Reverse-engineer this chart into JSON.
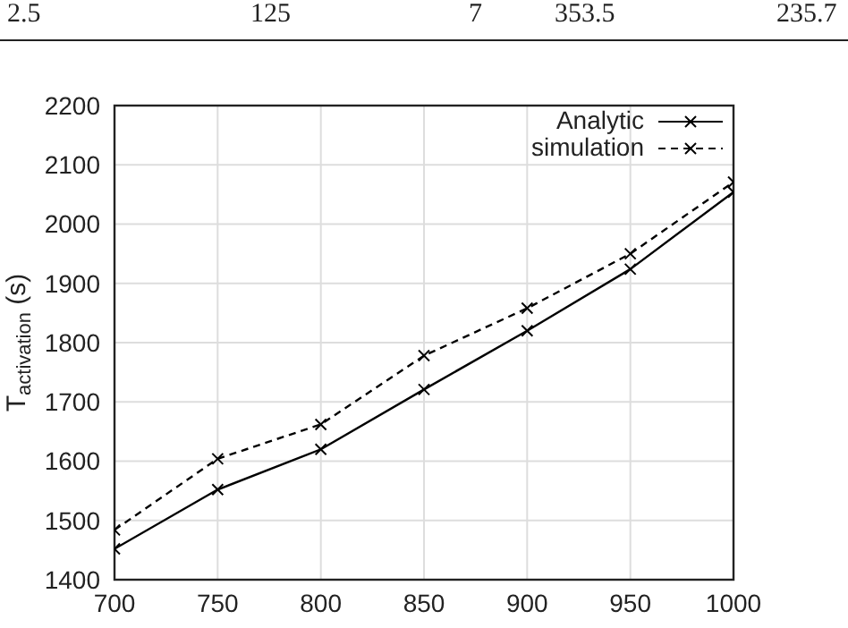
{
  "chart_data": {
    "type": "line",
    "ylabel": "T$_{activation}$ (s)",
    "annotations": [
      "2.5",
      "125",
      "7",
      "353.5",
      "235.7"
    ],
    "x": [
      700,
      750,
      800,
      850,
      900,
      950,
      1000
    ],
    "series": [
      {
        "name": "Analytic",
        "color": "#000000",
        "values": [
          1452,
          1552,
          1620,
          1721,
          1820,
          1924,
          2054
        ],
        "line_style": "solid"
      },
      {
        "name": "simulation",
        "color": "#000000",
        "values": [
          1484,
          1604,
          1662,
          1778,
          1858,
          1950,
          2071
        ],
        "line_style": "dashed"
      }
    ],
    "xlim": [
      700,
      1000
    ],
    "xticks": [
      700,
      750,
      800,
      850,
      900,
      950,
      1000
    ],
    "ylim": [
      1400,
      2200
    ],
    "yticks": [
      1400,
      1500,
      1600,
      1700,
      1800,
      1900,
      2000,
      2100,
      2200
    ],
    "grid": true,
    "legend": "top right",
    "marker": "cross"
  }
}
